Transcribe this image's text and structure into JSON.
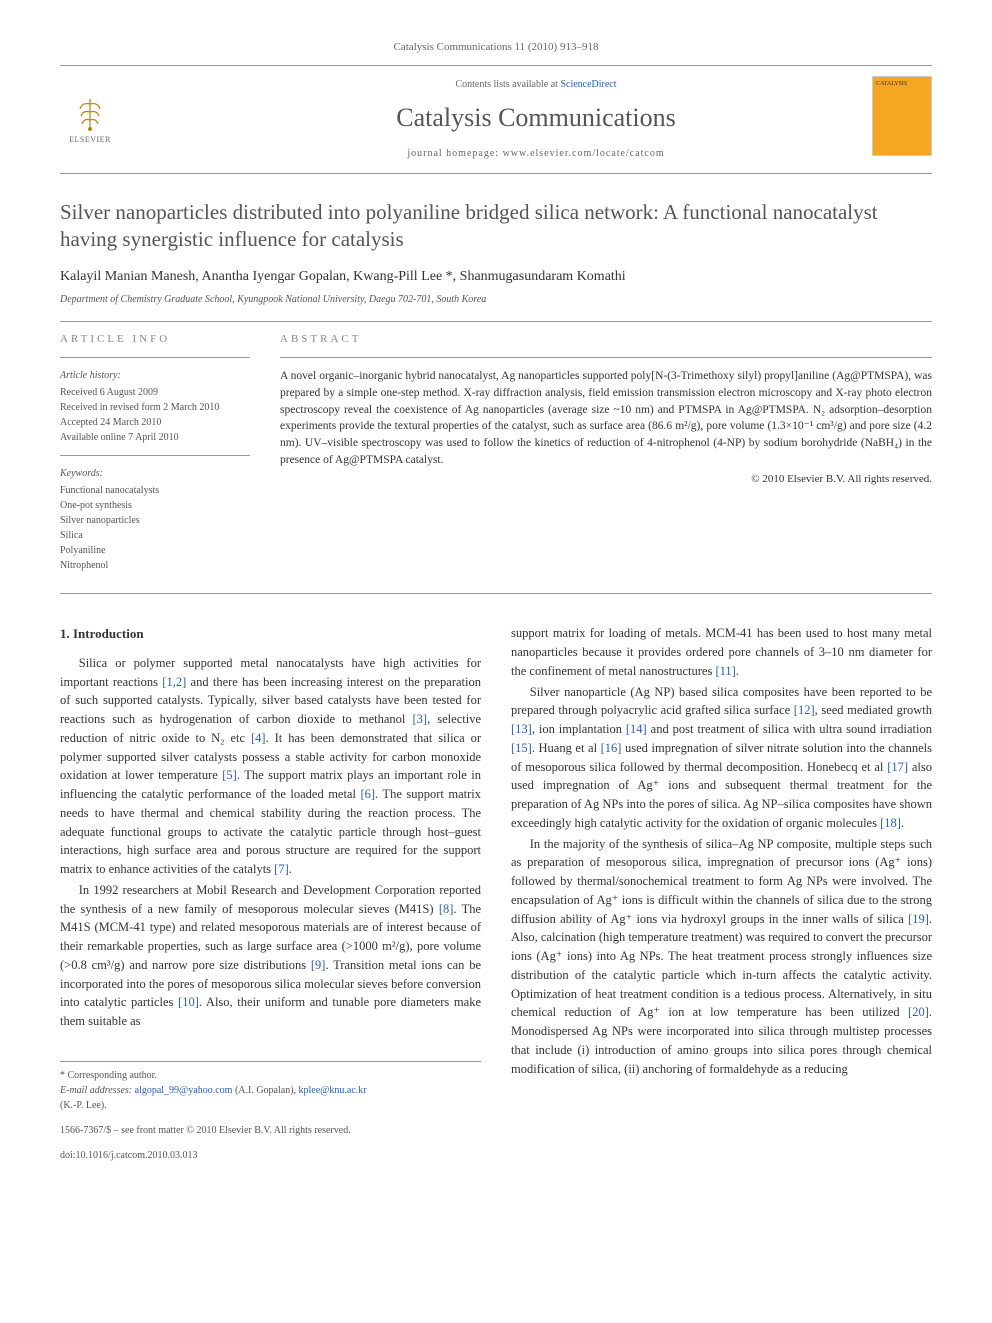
{
  "header": {
    "citation": "Catalysis Communications 11 (2010) 913–918",
    "contents_prefix": "Contents lists available at ",
    "contents_link": "ScienceDirect",
    "journal_name": "Catalysis Communications",
    "homepage_prefix": "journal homepage: ",
    "homepage_url": "www.elsevier.com/locate/catcom",
    "publisher_label": "ELSEVIER",
    "cover_label": "CATALYSIS"
  },
  "article": {
    "title": "Silver nanoparticles distributed into polyaniline bridged silica network: A functional nanocatalyst having synergistic influence for catalysis",
    "authors": "Kalayil Manian Manesh, Anantha Iyengar Gopalan, Kwang-Pill Lee *, Shanmugasundaram Komathi",
    "affiliation": "Department of Chemistry Graduate School, Kyungpook National University, Daegu 702-701, South Korea"
  },
  "info": {
    "heading": "ARTICLE INFO",
    "history_label": "Article history:",
    "history": [
      "Received 6 August 2009",
      "Received in revised form 2 March 2010",
      "Accepted 24 March 2010",
      "Available online 7 April 2010"
    ],
    "keywords_label": "Keywords:",
    "keywords": [
      "Functional nanocatalysts",
      "One-pot synthesis",
      "Silver nanoparticles",
      "Silica",
      "Polyaniline",
      "Nitrophenol"
    ]
  },
  "abstract": {
    "heading": "ABSTRACT",
    "text": "A novel organic–inorganic hybrid nanocatalyst, Ag nanoparticles supported poly[N-(3-Trimethoxy silyl) propyl]aniline (Ag@PTMSPA), was prepared by a simple one-step method. X-ray diffraction analysis, field emission transmission electron microscopy and X-ray photo electron spectroscopy reveal the coexistence of Ag nanoparticles (average size ~10 nm) and PTMSPA in Ag@PTMSPA. N₂ adsorption–desorption experiments provide the textural properties of the catalyst, such as surface area (86.6 m²/g), pore volume (1.3×10⁻¹ cm³/g) and pore size (4.2 nm). UV–visible spectroscopy was used to follow the kinetics of reduction of 4-nitrophenol (4-NP) by sodium borohydride (NaBH₄) in the presence of Ag@PTMSPA catalyst.",
    "copyright": "© 2010 Elsevier B.V. All rights reserved."
  },
  "body": {
    "section_heading": "1. Introduction",
    "left_paras": [
      "Silica or polymer supported metal nanocatalysts have high activities for important reactions [1,2] and there has been increasing interest on the preparation of such supported catalysts. Typically, silver based catalysts have been tested for reactions such as hydrogenation of carbon dioxide to methanol [3], selective reduction of nitric oxide to N₂ etc [4]. It has been demonstrated that silica or polymer supported silver catalysts possess a stable activity for carbon monoxide oxidation at lower temperature [5]. The support matrix plays an important role in influencing the catalytic performance of the loaded metal [6]. The support matrix needs to have thermal and chemical stability during the reaction process. The adequate functional groups to activate the catalytic particle through host–guest interactions, high surface area and porous structure are required for the support matrix to enhance activities of the catalyts [7].",
      "In 1992 researchers at Mobil Research and Development Corporation reported the synthesis of a new family of mesoporous molecular sieves (M41S) [8]. The M41S (MCM-41 type) and related mesoporous materials are of interest because of their remarkable properties, such as large surface area (>1000 m²/g), pore volume (>0.8 cm³/g) and narrow pore size distributions [9]. Transition metal ions can be incorporated into the pores of mesoporous silica molecular sieves before conversion into catalytic particles [10]. Also, their uniform and tunable pore diameters make them suitable as"
    ],
    "right_paras": [
      "support matrix for loading of metals. MCM-41 has been used to host many metal nanoparticles because it provides ordered pore channels of 3–10 nm diameter for the confinement of metal nanostructures [11].",
      "Silver nanoparticle (Ag NP) based silica composites have been reported to be prepared through polyacrylic acid grafted silica surface [12], seed mediated growth [13], ion implantation [14] and post treatment of silica with ultra sound irradiation [15]. Huang et al [16] used impregnation of silver nitrate solution into the channels of mesoporous silica followed by thermal decomposition. Honebecq et al [17] also used impregnation of Ag⁺ ions and subsequent thermal treatment for the preparation of Ag NPs into the pores of silica. Ag NP–silica composites have shown exceedingly high catalytic activity for the oxidation of organic molecules [18].",
      "In the majority of the synthesis of silica–Ag NP composite, multiple steps such as preparation of mesoporous silica, impregnation of precursor ions (Ag⁺ ions) followed by thermal/sonochemical treatment to form Ag NPs were involved. The encapsulation of Ag⁺ ions is difficult within the channels of silica due to the strong diffusion ability of Ag⁺ ions via hydroxyl groups in the inner walls of silica [19]. Also, calcination (high temperature treatment) was required to convert the precursor ions (Ag⁺ ions) into Ag NPs. The heat treatment process strongly influences size distribution of the catalytic particle which in-turn affects the catalytic activity. Optimization of heat treatment condition is a tedious process. Alternatively, in situ chemical reduction of Ag⁺ ion at low temperature has been utilized [20]. Monodispersed Ag NPs were incorporated into silica through multistep processes that include (i) introduction of amino groups into silica pores through chemical modification of silica, (ii) anchoring of formaldehyde as a reducing"
    ]
  },
  "footer": {
    "corresponding": "* Corresponding author.",
    "email_label": "E-mail addresses: ",
    "email1": "algopal_99@yahoo.com",
    "email1_who": " (A.I. Gopalan), ",
    "email2": "kplee@knu.ac.kr",
    "email2_who": "(K.-P. Lee).",
    "issn_line": "1566-7367/$ – see front matter © 2010 Elsevier B.V. All rights reserved.",
    "doi": "doi:10.1016/j.catcom.2010.03.013"
  },
  "colors": {
    "link": "#2a5db0",
    "text": "#333333",
    "muted": "#666666",
    "border": "#999999",
    "cover": "#f5a623"
  }
}
